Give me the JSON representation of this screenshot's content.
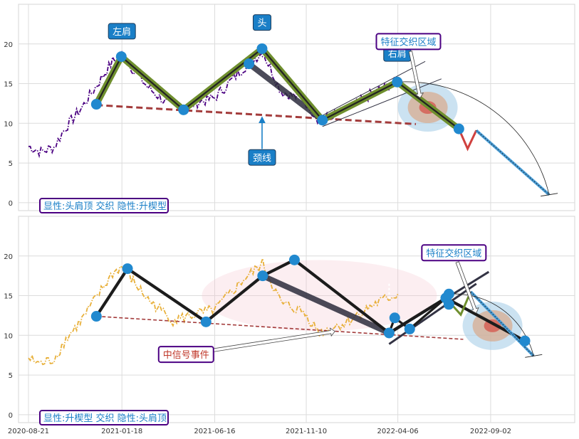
{
  "chart_data": [
    {
      "type": "line",
      "panel": "top",
      "ylim": [
        -1,
        25
      ],
      "yticks": [
        0,
        5,
        10,
        15,
        20
      ],
      "xlim": [
        "2020-08-05",
        "2023-01-15"
      ],
      "xtick_dates": [
        "2020-08-21",
        "2021-01-18",
        "2021-06-16",
        "2021-11-10",
        "2022-04-06",
        "2022-09-02"
      ],
      "grid": true,
      "price_color": "#4b0082",
      "price_style": "dashdot",
      "price_anchors": [
        [
          "2020-08-21",
          7.1
        ],
        [
          "2020-09-10",
          6.4
        ],
        [
          "2020-10-01",
          7.0
        ],
        [
          "2020-10-20",
          9.5
        ],
        [
          "2020-11-15",
          12.0
        ],
        [
          "2021-01-03",
          17.8
        ],
        [
          "2021-01-18",
          18.6
        ],
        [
          "2021-02-05",
          16.8
        ],
        [
          "2021-03-01",
          14.5
        ],
        [
          "2021-04-10",
          11.9
        ],
        [
          "2021-05-10",
          12.5
        ],
        [
          "2021-06-16",
          13.2
        ],
        [
          "2021-08-01",
          17.0
        ],
        [
          "2021-09-01",
          19.0
        ],
        [
          "2021-10-01",
          14.0
        ],
        [
          "2021-11-05",
          13.0
        ],
        [
          "2021-12-01",
          10.4
        ],
        [
          "2022-01-10",
          11.5
        ],
        [
          "2022-03-01",
          14.0
        ],
        [
          "2022-04-06",
          15.2
        ]
      ],
      "pattern_points": [
        [
          "2020-12-08",
          12.4
        ],
        [
          "2021-01-17",
          18.4
        ],
        [
          "2021-04-27",
          11.7
        ],
        [
          "2021-08-10",
          17.5
        ],
        [
          "2021-08-31",
          19.4
        ],
        [
          "2021-12-06",
          10.4
        ],
        [
          "2022-04-05",
          15.2
        ],
        [
          "2022-07-13",
          9.3
        ]
      ],
      "pattern_line": [
        [
          "2020-12-08",
          12.4
        ],
        [
          "2021-01-17",
          18.4
        ],
        [
          "2021-04-27",
          11.7
        ],
        [
          "2021-08-31",
          19.4
        ],
        [
          "2021-12-06",
          10.4
        ],
        [
          "2022-04-05",
          15.2
        ],
        [
          "2022-07-13",
          9.3
        ]
      ],
      "neckline": [
        [
          "2020-12-08",
          12.3
        ],
        [
          "2022-05-05",
          9.9
        ]
      ],
      "gray_band": [
        [
          "2021-08-10",
          17.5
        ],
        [
          "2021-12-06",
          10.4
        ]
      ],
      "projection_red": [
        [
          "2022-07-13",
          9.3
        ],
        [
          "2022-07-27",
          6.8
        ],
        [
          "2022-08-10",
          9.1
        ]
      ],
      "projection_blue": [
        [
          "2022-08-10",
          9.1
        ],
        [
          "2022-12-05",
          1.0
        ]
      ],
      "projection_arc": [
        [
          "2022-04-05",
          15.2
        ],
        [
          "2022-12-05",
          1.0
        ]
      ],
      "channel_upper": [
        [
          "2021-12-06",
          11.0
        ],
        [
          "2022-05-20",
          17.8
        ]
      ],
      "channel_lower": [
        [
          "2021-12-06",
          9.6
        ],
        [
          "2022-06-15",
          15.6
        ]
      ],
      "highlight_center": [
        "2022-05-24",
        12.0
      ],
      "annotations": [
        {
          "text": "左肩",
          "at": [
            "2021-01-17",
            18.4
          ],
          "label_pos": [
            "2021-01-18",
            21.6
          ],
          "color": "#ffffff",
          "bg": "#1a7fc7",
          "arrow": false
        },
        {
          "text": "头",
          "at": [
            "2021-08-31",
            19.4
          ],
          "label_pos": [
            "2021-08-31",
            22.7
          ],
          "color": "#ffffff",
          "bg": "#1a7fc7",
          "arrow": false
        },
        {
          "text": "右肩",
          "at": [
            "2022-04-05",
            15.2
          ],
          "label_pos": [
            "2022-04-05",
            18.8
          ],
          "color": "#ffffff",
          "bg": "#1a7fc7",
          "arrow": false
        },
        {
          "text": "颈线",
          "at": [
            "2021-08-31",
            11.0
          ],
          "label_pos": [
            "2021-08-31",
            5.7
          ],
          "color": "#ffffff",
          "bg": "#1a7fc7",
          "arrow": true
        },
        {
          "text": "特征交织区域",
          "at": [
            "2022-05-12",
            13.2
          ],
          "label_pos": [
            "2022-04-23",
            20.3
          ],
          "color": "#1a7fc7",
          "bg": "#ffffff",
          "arrow": true
        }
      ],
      "legend_text": "显性:头肩顶 交织 隐性:升楔型"
    },
    {
      "type": "line",
      "panel": "bottom",
      "ylim": [
        -1,
        25
      ],
      "yticks": [
        0,
        5,
        10,
        15,
        20
      ],
      "xlim": [
        "2020-08-05",
        "2023-01-15"
      ],
      "xtick_labels": [
        "2020-08-21",
        "2021-01-18",
        "2021-06-16",
        "2021-11-10",
        "2022-04-06",
        "2022-09-02"
      ],
      "xtick_dates": [
        "2020-08-21",
        "2021-01-18",
        "2021-06-16",
        "2021-11-10",
        "2022-04-06",
        "2022-09-02"
      ],
      "grid": true,
      "price_color": "#e8b03a",
      "price_style": "dashdot",
      "price_anchors": [
        [
          "2020-08-21",
          7.1
        ],
        [
          "2020-09-10",
          6.4
        ],
        [
          "2020-10-01",
          7.0
        ],
        [
          "2020-10-20",
          9.5
        ],
        [
          "2020-11-15",
          12.0
        ],
        [
          "2021-01-03",
          17.8
        ],
        [
          "2021-01-18",
          18.6
        ],
        [
          "2021-02-05",
          16.8
        ],
        [
          "2021-03-01",
          14.5
        ],
        [
          "2021-04-10",
          11.9
        ],
        [
          "2021-05-10",
          12.5
        ],
        [
          "2021-06-16",
          13.2
        ],
        [
          "2021-08-01",
          17.0
        ],
        [
          "2021-09-01",
          19.0
        ],
        [
          "2021-10-01",
          14.0
        ],
        [
          "2021-11-05",
          13.0
        ],
        [
          "2021-12-01",
          10.4
        ],
        [
          "2022-01-10",
          11.5
        ],
        [
          "2022-03-01",
          14.0
        ],
        [
          "2022-04-06",
          15.2
        ]
      ],
      "pattern_points": [
        [
          "2020-12-08",
          12.4
        ],
        [
          "2021-01-27",
          18.4
        ],
        [
          "2021-06-02",
          11.7
        ],
        [
          "2021-09-01",
          17.5
        ],
        [
          "2021-10-22",
          19.5
        ],
        [
          "2022-03-23",
          10.3
        ],
        [
          "2022-04-01",
          12.2
        ],
        [
          "2022-04-25",
          10.8
        ],
        [
          "2022-06-22",
          14.7
        ],
        [
          "2022-06-27",
          15.2
        ],
        [
          "2022-06-27",
          13.9
        ],
        [
          "2022-10-27",
          9.3
        ]
      ],
      "pattern_line": [
        [
          "2020-12-08",
          12.4
        ],
        [
          "2021-01-27",
          18.4
        ],
        [
          "2021-06-02",
          11.7
        ],
        [
          "2021-09-01",
          17.5
        ],
        [
          "2021-10-22",
          19.5
        ],
        [
          "2022-03-23",
          10.3
        ],
        [
          "2022-06-22",
          14.7
        ],
        [
          "2022-10-27",
          9.3
        ]
      ],
      "neckline": [
        [
          "2020-12-08",
          12.4
        ],
        [
          "2022-07-20",
          9.5
        ]
      ],
      "gray_band": [
        [
          "2021-09-01",
          17.5
        ],
        [
          "2022-03-23",
          10.3
        ]
      ],
      "small_zigzag": [
        [
          "2022-03-23",
          10.3
        ],
        [
          "2022-04-01",
          12.2
        ],
        [
          "2022-04-25",
          10.8
        ],
        [
          "2022-06-22",
          14.7
        ],
        [
          "2022-06-27",
          15.2
        ],
        [
          "2022-06-27",
          13.9
        ]
      ],
      "projection_green": [
        [
          "2022-06-22",
          14.7
        ],
        [
          "2022-07-16",
          12.6
        ],
        [
          "2022-08-01",
          15.5
        ]
      ],
      "projection_blue": [
        [
          "2022-08-01",
          15.5
        ],
        [
          "2022-11-10",
          7.4
        ]
      ],
      "projection_arc": [
        [
          "2022-06-27",
          15.2
        ],
        [
          "2022-11-10",
          7.4
        ]
      ],
      "channel_upper": [
        [
          "2022-03-23",
          10.2
        ],
        [
          "2022-08-30",
          18.0
        ]
      ],
      "channel_lower": [
        [
          "2022-03-23",
          8.9
        ],
        [
          "2022-08-10",
          16.5
        ]
      ],
      "signal_ellipse_center": [
        "2021-12-01",
        15.0
      ],
      "highlight_center": [
        "2022-09-05",
        11.2
      ],
      "annotations": [
        {
          "text": "特征交织区域",
          "at": [
            "2022-08-10",
            12.8
          ],
          "label_pos": [
            "2022-07-05",
            20.4
          ],
          "color": "#1a7fc7",
          "bg": "#ffffff",
          "arrow": true
        },
        {
          "text": "中信号事件",
          "at": [
            "2021-12-26",
            10.5
          ],
          "label_pos": [
            "2021-05-01",
            7.6
          ],
          "color": "#c0392b",
          "bg": "#ffffff",
          "arrow": true
        }
      ],
      "legend_text": "显性:升楔型 交织 隐性:头肩顶"
    }
  ]
}
